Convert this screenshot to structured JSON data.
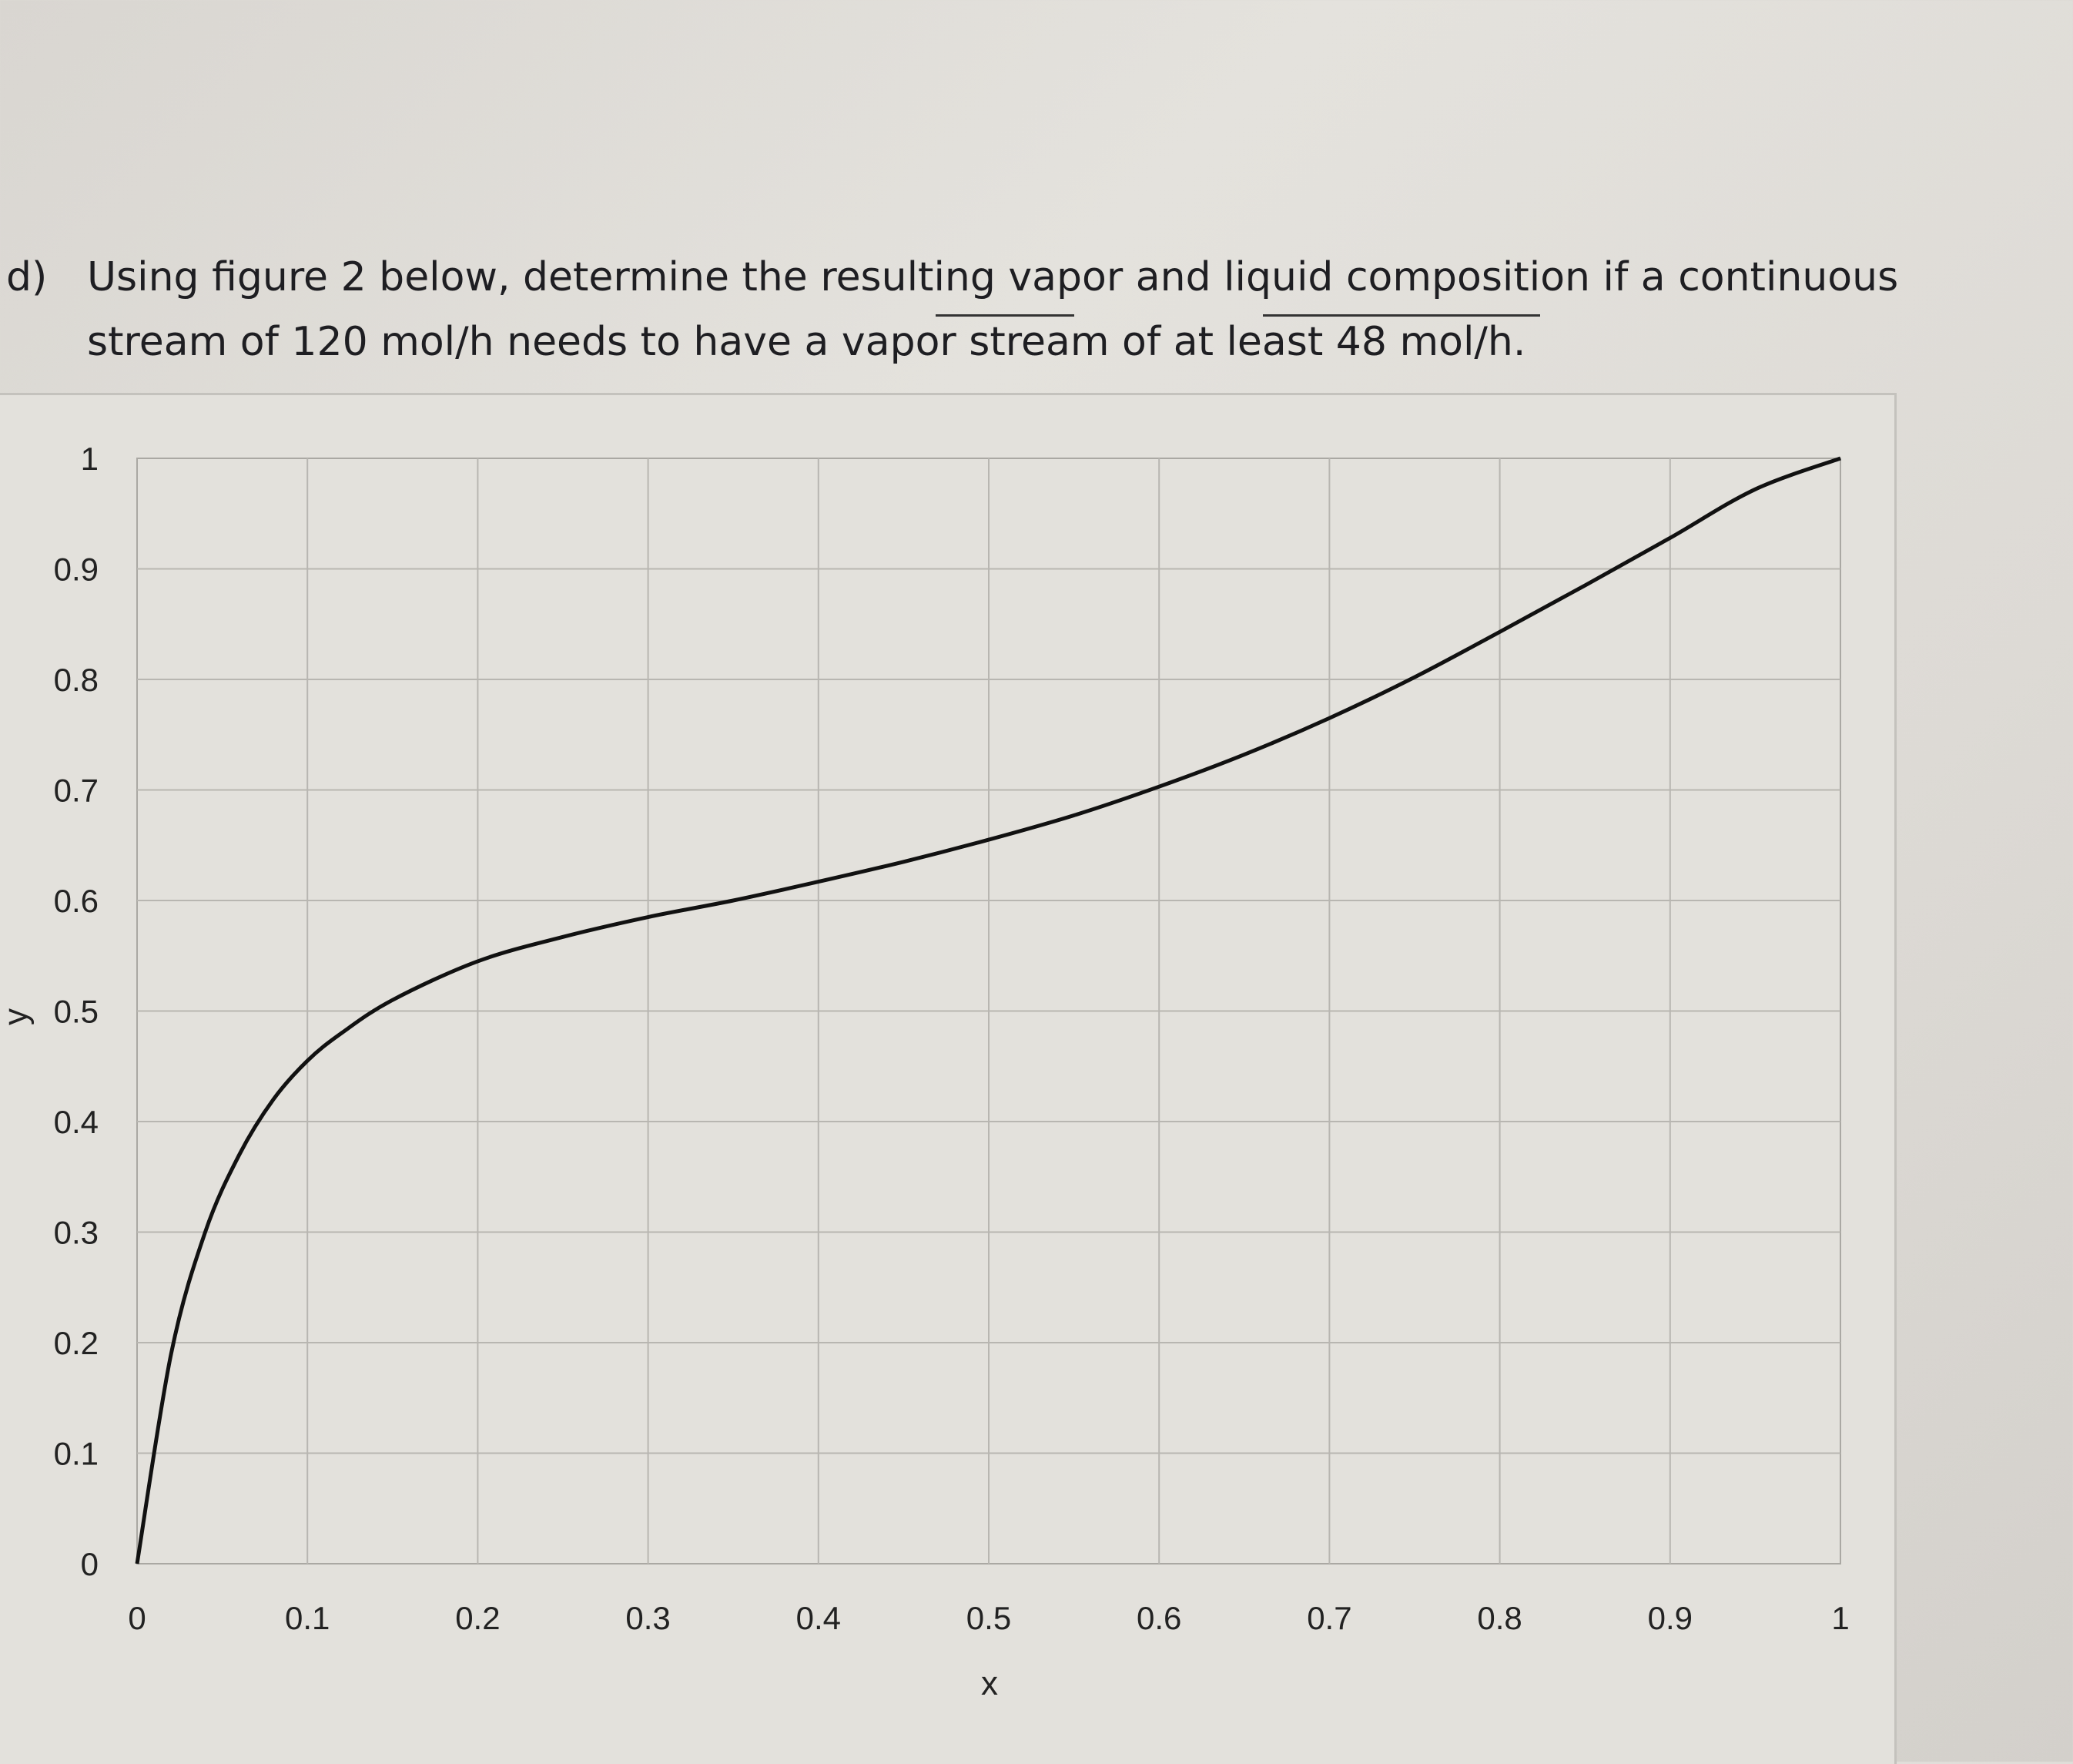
{
  "question": {
    "label": "d)",
    "line1": "Using figure 2 below, determine the resulting vapor and liquid composition if a continuous",
    "line2": "stream of 120 mol/h needs to have a vapor stream of at least 48 mol/h."
  },
  "chart_data": {
    "type": "line",
    "title": "",
    "xlabel": "x",
    "ylabel": "y",
    "xlim": [
      0,
      1
    ],
    "ylim": [
      0,
      1
    ],
    "x_ticks": [
      "0",
      "0.1",
      "0.2",
      "0.3",
      "0.4",
      "0.5",
      "0.6",
      "0.7",
      "0.8",
      "0.9",
      "1"
    ],
    "y_ticks": [
      "0",
      "0.1",
      "0.2",
      "0.3",
      "0.4",
      "0.5",
      "0.6",
      "0.7",
      "0.8",
      "0.9",
      "1"
    ],
    "grid": true,
    "series": [
      {
        "x": [
          0,
          0.02,
          0.04,
          0.06,
          0.08,
          0.1,
          0.12,
          0.15,
          0.2,
          0.25,
          0.3,
          0.35,
          0.4,
          0.45,
          0.5,
          0.55,
          0.6,
          0.65,
          0.7,
          0.75,
          0.8,
          0.85,
          0.9,
          0.95,
          1.0
        ],
        "y": [
          0,
          0.19,
          0.3,
          0.37,
          0.42,
          0.455,
          0.48,
          0.51,
          0.545,
          0.567,
          0.585,
          0.6,
          0.617,
          0.635,
          0.655,
          0.677,
          0.703,
          0.732,
          0.765,
          0.802,
          0.843,
          0.885,
          0.928,
          0.972,
          1.0
        ]
      }
    ],
    "color": "#111111"
  }
}
